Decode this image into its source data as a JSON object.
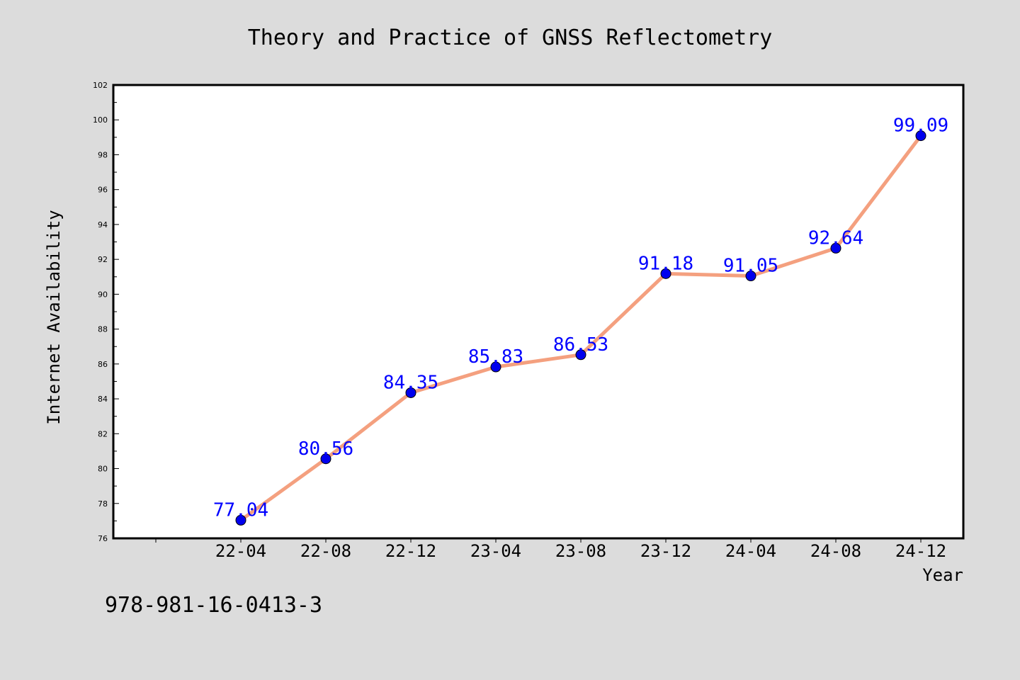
{
  "chart_data": {
    "type": "line",
    "title": "Theory and Practice of GNSS Reflectometry",
    "xlabel": "Year",
    "ylabel": "Internet Availability",
    "categories": [
      "22-04",
      "22-08",
      "22-12",
      "23-04",
      "23-08",
      "23-12",
      "24-04",
      "24-08",
      "24-12"
    ],
    "series": [
      {
        "values": [
          77.04,
          80.56,
          84.35,
          85.83,
          86.53,
          91.18,
          91.05,
          92.64,
          99.09
        ],
        "line_color": "#f4a07f",
        "marker_color": "#0000ee"
      }
    ],
    "data_labels": [
      "77.04",
      "80.56",
      "84.35",
      "85.83",
      "86.53",
      "91.18",
      "91.05",
      "92.64",
      "99.09"
    ],
    "ylim": [
      76,
      102
    ],
    "yticks": [
      "76",
      "78",
      "80",
      "82",
      "84",
      "86",
      "88",
      "90",
      "92",
      "94",
      "96",
      "98",
      "100",
      "102"
    ],
    "grid": false,
    "legend": "none"
  },
  "footer": {
    "isbn": "978-981-16-0413-3"
  },
  "colors": {
    "background": "#dcdcdc",
    "plot_background": "#ffffff",
    "data_label": "#0000ff"
  }
}
